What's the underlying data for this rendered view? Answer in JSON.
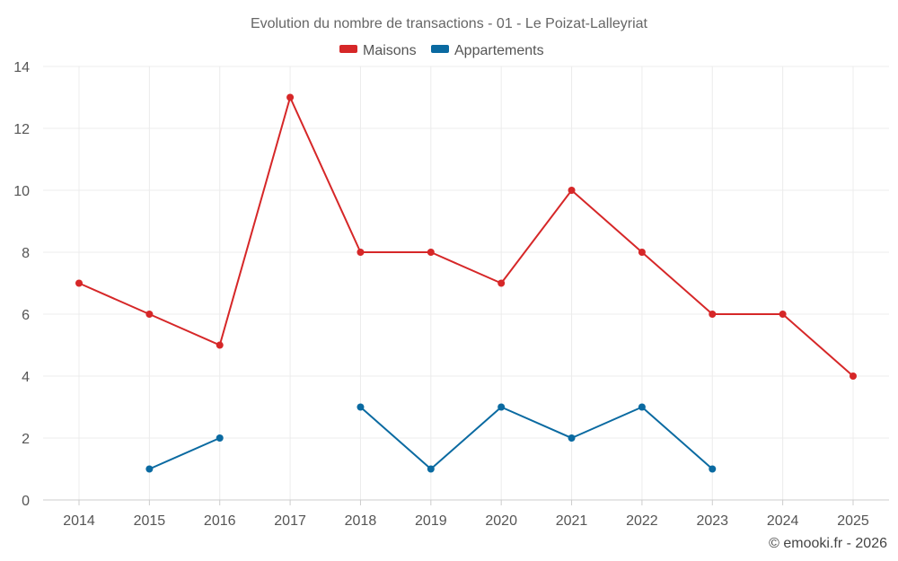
{
  "chart_data": {
    "type": "line",
    "title": "Evolution du nombre de transactions - 01 - Le Poizat-Lalleyriat",
    "categories": [
      "2014",
      "2015",
      "2016",
      "2017",
      "2018",
      "2019",
      "2020",
      "2021",
      "2022",
      "2023",
      "2024",
      "2025"
    ],
    "series": [
      {
        "name": "Maisons",
        "color": "#d62728",
        "values": [
          7,
          6,
          5,
          13,
          8,
          8,
          7,
          10,
          8,
          6,
          6,
          4
        ]
      },
      {
        "name": "Appartements",
        "color": "#0a6aa1",
        "values": [
          null,
          1,
          2,
          null,
          3,
          1,
          3,
          2,
          3,
          1,
          null,
          null
        ]
      }
    ],
    "yticks": [
      0,
      2,
      4,
      6,
      8,
      10,
      12,
      14
    ],
    "ylim": [
      0,
      14
    ],
    "xlabel": "",
    "ylabel": "",
    "grid": true,
    "legend_position": "top-center"
  },
  "credit": "© emooki.fr - 2026"
}
